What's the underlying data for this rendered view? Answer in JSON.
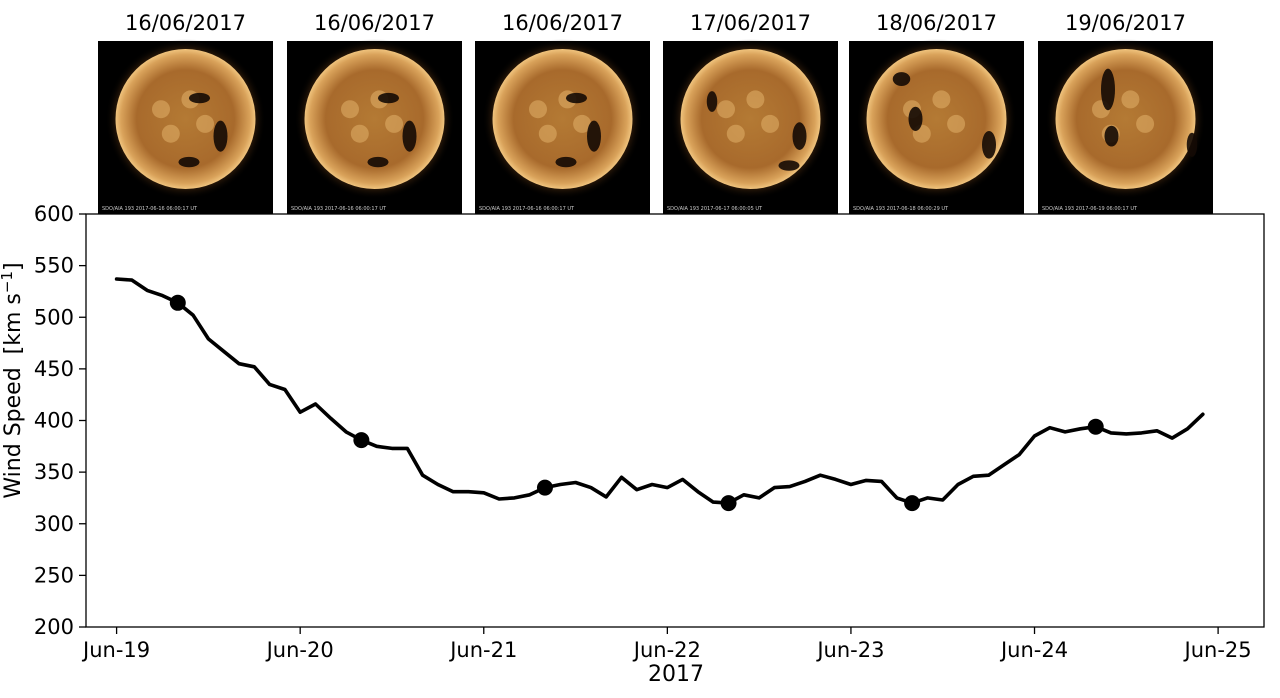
{
  "chart_data": {
    "type": "line",
    "xlabel": "2017",
    "ylabel": "Wind Speed",
    "ylabel_unit": "[km s⁻¹]",
    "ylim": [
      200,
      600
    ],
    "yticks": [
      200,
      250,
      300,
      350,
      400,
      450,
      500,
      550,
      600
    ],
    "xlim": [
      "2017-06-18T20:00",
      "2017-06-25T06:00"
    ],
    "xticks": [
      {
        "date": "2017-06-19",
        "label": "Jun-19"
      },
      {
        "date": "2017-06-20",
        "label": "Jun-20"
      },
      {
        "date": "2017-06-21",
        "label": "Jun-21"
      },
      {
        "date": "2017-06-22",
        "label": "Jun-22"
      },
      {
        "date": "2017-06-23",
        "label": "Jun-23"
      },
      {
        "date": "2017-06-24",
        "label": "Jun-24"
      },
      {
        "date": "2017-06-25",
        "label": "Jun-25"
      }
    ],
    "grid": false,
    "line_color": "#000000",
    "series": [
      {
        "points": [
          [
            "2017-06-19T00:00",
            537
          ],
          [
            "2017-06-19T02:00",
            536
          ],
          [
            "2017-06-19T04:00",
            526
          ],
          [
            "2017-06-19T06:00",
            521
          ],
          [
            "2017-06-19T08:00",
            514
          ],
          [
            "2017-06-19T10:00",
            502
          ],
          [
            "2017-06-19T12:00",
            479
          ],
          [
            "2017-06-19T14:00",
            467
          ],
          [
            "2017-06-19T16:00",
            455
          ],
          [
            "2017-06-19T18:00",
            452
          ],
          [
            "2017-06-19T20:00",
            435
          ],
          [
            "2017-06-19T22:00",
            430
          ],
          [
            "2017-06-20T00:00",
            408
          ],
          [
            "2017-06-20T02:00",
            416
          ],
          [
            "2017-06-20T04:00",
            402
          ],
          [
            "2017-06-20T06:00",
            389
          ],
          [
            "2017-06-20T08:00",
            381
          ],
          [
            "2017-06-20T10:00",
            375
          ],
          [
            "2017-06-20T12:00",
            373
          ],
          [
            "2017-06-20T14:00",
            373
          ],
          [
            "2017-06-20T16:00",
            347
          ],
          [
            "2017-06-20T18:00",
            338
          ],
          [
            "2017-06-20T20:00",
            331
          ],
          [
            "2017-06-20T22:00",
            331
          ],
          [
            "2017-06-21T00:00",
            330
          ],
          [
            "2017-06-21T02:00",
            324
          ],
          [
            "2017-06-21T04:00",
            325
          ],
          [
            "2017-06-21T06:00",
            328
          ],
          [
            "2017-06-21T08:00",
            335
          ],
          [
            "2017-06-21T10:00",
            338
          ],
          [
            "2017-06-21T12:00",
            340
          ],
          [
            "2017-06-21T14:00",
            335
          ],
          [
            "2017-06-21T16:00",
            326
          ],
          [
            "2017-06-21T18:00",
            345
          ],
          [
            "2017-06-21T20:00",
            333
          ],
          [
            "2017-06-21T22:00",
            338
          ],
          [
            "2017-06-22T00:00",
            335
          ],
          [
            "2017-06-22T02:00",
            343
          ],
          [
            "2017-06-22T04:00",
            331
          ],
          [
            "2017-06-22T06:00",
            321
          ],
          [
            "2017-06-22T08:00",
            320
          ],
          [
            "2017-06-22T10:00",
            328
          ],
          [
            "2017-06-22T12:00",
            325
          ],
          [
            "2017-06-22T14:00",
            335
          ],
          [
            "2017-06-22T16:00",
            336
          ],
          [
            "2017-06-22T18:00",
            341
          ],
          [
            "2017-06-22T20:00",
            347
          ],
          [
            "2017-06-22T22:00",
            343
          ],
          [
            "2017-06-23T00:00",
            338
          ],
          [
            "2017-06-23T02:00",
            342
          ],
          [
            "2017-06-23T04:00",
            341
          ],
          [
            "2017-06-23T06:00",
            325
          ],
          [
            "2017-06-23T08:00",
            320
          ],
          [
            "2017-06-23T10:00",
            325
          ],
          [
            "2017-06-23T12:00",
            323
          ],
          [
            "2017-06-23T14:00",
            338
          ],
          [
            "2017-06-23T16:00",
            346
          ],
          [
            "2017-06-23T18:00",
            347
          ],
          [
            "2017-06-23T20:00",
            357
          ],
          [
            "2017-06-23T22:00",
            367
          ],
          [
            "2017-06-24T00:00",
            385
          ],
          [
            "2017-06-24T02:00",
            393
          ],
          [
            "2017-06-24T04:00",
            389
          ],
          [
            "2017-06-24T06:00",
            392
          ],
          [
            "2017-06-24T08:00",
            394
          ],
          [
            "2017-06-24T10:00",
            388
          ],
          [
            "2017-06-24T12:00",
            387
          ],
          [
            "2017-06-24T14:00",
            388
          ],
          [
            "2017-06-24T16:00",
            390
          ],
          [
            "2017-06-24T18:00",
            383
          ],
          [
            "2017-06-24T20:00",
            392
          ],
          [
            "2017-06-24T22:00",
            406
          ]
        ]
      }
    ],
    "markers": [
      {
        "date": "2017-06-19T08:00",
        "value": 514
      },
      {
        "date": "2017-06-20T08:00",
        "value": 381
      },
      {
        "date": "2017-06-21T08:00",
        "value": 335
      },
      {
        "date": "2017-06-22T08:00",
        "value": 320
      },
      {
        "date": "2017-06-23T08:00",
        "value": 320
      },
      {
        "date": "2017-06-24T08:00",
        "value": 394
      }
    ],
    "sun_images": [
      {
        "label": "16/06/2017",
        "caption": "SDO/AIA 193 2017-06-16 06:00:17 UT",
        "coronal_holes": [
          [
            0.58,
            0.33,
            0.06,
            0.03
          ],
          [
            0.7,
            0.55,
            0.04,
            0.09
          ],
          [
            0.52,
            0.7,
            0.06,
            0.03
          ]
        ]
      },
      {
        "label": "16/06/2017",
        "caption": "SDO/AIA 193 2017-06-16 06:00:17 UT",
        "coronal_holes": [
          [
            0.58,
            0.33,
            0.06,
            0.03
          ],
          [
            0.7,
            0.55,
            0.04,
            0.09
          ],
          [
            0.52,
            0.7,
            0.06,
            0.03
          ]
        ]
      },
      {
        "label": "16/06/2017",
        "caption": "SDO/AIA 193 2017-06-16 06:00:17 UT",
        "coronal_holes": [
          [
            0.58,
            0.33,
            0.06,
            0.03
          ],
          [
            0.68,
            0.55,
            0.04,
            0.09
          ],
          [
            0.52,
            0.7,
            0.06,
            0.03
          ]
        ]
      },
      {
        "label": "17/06/2017",
        "caption": "SDO/AIA 193 2017-06-17 06:00:05 UT",
        "coronal_holes": [
          [
            0.28,
            0.35,
            0.03,
            0.06
          ],
          [
            0.78,
            0.55,
            0.04,
            0.08
          ],
          [
            0.72,
            0.72,
            0.06,
            0.03
          ]
        ]
      },
      {
        "label": "18/06/2017",
        "caption": "SDO/AIA 193 2017-06-18 06:00:29 UT",
        "coronal_holes": [
          [
            0.3,
            0.22,
            0.05,
            0.04
          ],
          [
            0.38,
            0.45,
            0.04,
            0.07
          ],
          [
            0.8,
            0.6,
            0.04,
            0.08
          ]
        ]
      },
      {
        "label": "19/06/2017",
        "caption": "SDO/AIA 193 2017-06-19 06:00:17 UT",
        "coronal_holes": [
          [
            0.4,
            0.28,
            0.04,
            0.12
          ],
          [
            0.42,
            0.55,
            0.04,
            0.06
          ],
          [
            0.88,
            0.6,
            0.03,
            0.07
          ]
        ]
      }
    ],
    "colors": {
      "sun_core": "#c58a3b",
      "sun_mid": "#a0622a",
      "sun_limb": "#e8b46a",
      "corona": "#5a3412",
      "coronal_hole": "#140a04",
      "background": "#000000"
    }
  }
}
